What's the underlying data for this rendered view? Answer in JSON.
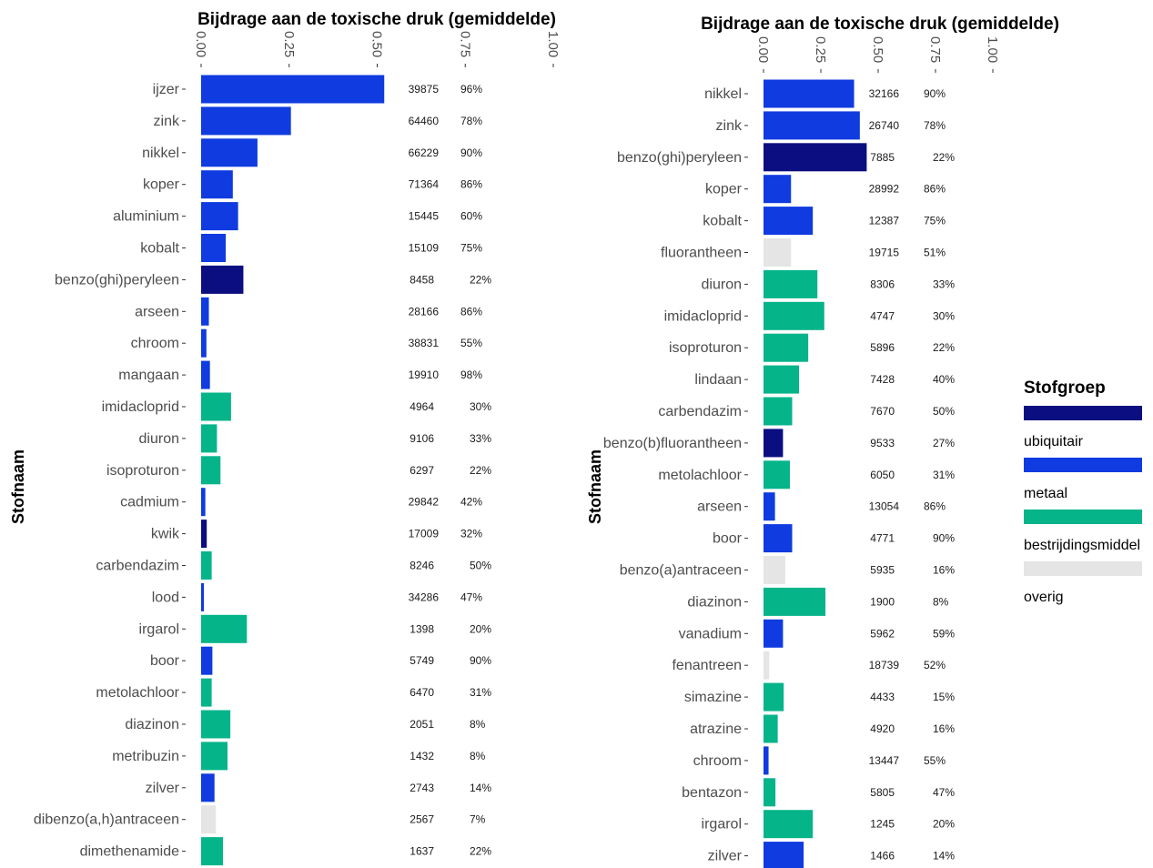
{
  "colors": {
    "ubiquitair": "#0b0e80",
    "metaal": "#0f3be0",
    "bestrijdingsmiddel": "#06b48a",
    "overig": "#e5e5e5"
  },
  "legend": {
    "title": "Stofgroep",
    "items": [
      {
        "label": "ubiquitair",
        "group": "ubiquitair"
      },
      {
        "label": "metaal",
        "group": "metaal"
      },
      {
        "label": "bestrijdingsmiddel",
        "group": "bestrijdingsmiddel"
      },
      {
        "label": "overig",
        "group": "overig"
      }
    ]
  },
  "chart_data": [
    {
      "type": "bar",
      "orientation": "horizontal",
      "title": "Bijdrage aan de toxische druk (gemiddelde)",
      "ylabel": "Stofnaam",
      "xlim": [
        0,
        1
      ],
      "xticks": [
        "0.00",
        "0.25",
        "0.50",
        "0.75",
        "1.00"
      ],
      "categories": [
        "ijzer",
        "zink",
        "nikkel",
        "koper",
        "aluminium",
        "kobalt",
        "benzo(ghi)peryleen",
        "arseen",
        "chroom",
        "mangaan",
        "imidacloprid",
        "diuron",
        "isoproturon",
        "cadmium",
        "kwik",
        "carbendazim",
        "lood",
        "irgarol",
        "boor",
        "metolachloor",
        "diazinon",
        "metribuzin",
        "zilver",
        "dibenzo(a,h)antraceen",
        "dimethenamide"
      ],
      "values": [
        0.52,
        0.255,
        0.16,
        0.09,
        0.105,
        0.07,
        0.12,
        0.022,
        0.015,
        0.025,
        0.085,
        0.045,
        0.055,
        0.012,
        0.016,
        0.03,
        0.008,
        0.13,
        0.032,
        0.03,
        0.083,
        0.075,
        0.038,
        0.042,
        0.062
      ],
      "groups": [
        "metaal",
        "metaal",
        "metaal",
        "metaal",
        "metaal",
        "metaal",
        "ubiquitair",
        "metaal",
        "metaal",
        "metaal",
        "bestrijdingsmiddel",
        "bestrijdingsmiddel",
        "bestrijdingsmiddel",
        "metaal",
        "ubiquitair",
        "bestrijdingsmiddel",
        "metaal",
        "bestrijdingsmiddel",
        "metaal",
        "bestrijdingsmiddel",
        "bestrijdingsmiddel",
        "bestrijdingsmiddel",
        "metaal",
        "overig",
        "bestrijdingsmiddel"
      ],
      "label_counts": [
        "39875",
        "64460",
        "66229",
        "71364",
        "15445",
        "15109",
        "8458",
        "28166",
        "38831",
        "19910",
        "4964",
        "9106",
        "6297",
        "29842",
        "17009",
        "8246",
        "34286",
        "1398",
        "5749",
        "6470",
        "2051",
        "1432",
        "2743",
        "2567",
        "1637"
      ],
      "label_percents": [
        "96%",
        "78%",
        "90%",
        "86%",
        "60%",
        "75%",
        "22%",
        "86%",
        "55%",
        "98%",
        "30%",
        "33%",
        "22%",
        "42%",
        "32%",
        "50%",
        "47%",
        "20%",
        "90%",
        "31%",
        "8%",
        "8%",
        "14%",
        "7%",
        "22%"
      ]
    },
    {
      "type": "bar",
      "orientation": "horizontal",
      "title": "Bijdrage aan de toxische druk (gemiddelde)",
      "ylabel": "Stofnaam",
      "xlim": [
        0,
        1
      ],
      "xticks": [
        "0.00",
        "0.25",
        "0.50",
        "0.75",
        "1.00"
      ],
      "categories": [
        "nikkel",
        "zink",
        "benzo(ghi)peryleen",
        "koper",
        "kobalt",
        "fluorantheen",
        "diuron",
        "imidacloprid",
        "isoproturon",
        "lindaan",
        "carbendazim",
        "benzo(b)fluorantheen",
        "metolachloor",
        "arseen",
        "boor",
        "benzo(a)antraceen",
        "diazinon",
        "vanadium",
        "fenantreen",
        "simazine",
        "atrazine",
        "chroom",
        "bentazon",
        "irgarol",
        "zilver"
      ],
      "values": [
        0.395,
        0.42,
        0.45,
        0.12,
        0.215,
        0.12,
        0.235,
        0.265,
        0.195,
        0.155,
        0.125,
        0.085,
        0.115,
        0.05,
        0.125,
        0.095,
        0.27,
        0.085,
        0.025,
        0.088,
        0.062,
        0.022,
        0.052,
        0.215,
        0.175
      ],
      "groups": [
        "metaal",
        "metaal",
        "ubiquitair",
        "metaal",
        "metaal",
        "overig",
        "bestrijdingsmiddel",
        "bestrijdingsmiddel",
        "bestrijdingsmiddel",
        "bestrijdingsmiddel",
        "bestrijdingsmiddel",
        "ubiquitair",
        "bestrijdingsmiddel",
        "metaal",
        "metaal",
        "overig",
        "bestrijdingsmiddel",
        "metaal",
        "overig",
        "bestrijdingsmiddel",
        "bestrijdingsmiddel",
        "metaal",
        "bestrijdingsmiddel",
        "bestrijdingsmiddel",
        "metaal"
      ],
      "label_counts": [
        "32166",
        "26740",
        "7885",
        "28992",
        "12387",
        "19715",
        "8306",
        "4747",
        "5896",
        "7428",
        "7670",
        "9533",
        "6050",
        "13054",
        "4771",
        "5935",
        "1900",
        "5962",
        "18739",
        "4433",
        "4920",
        "13447",
        "5805",
        "1245",
        "1466"
      ],
      "label_percents": [
        "90%",
        "78%",
        "22%",
        "86%",
        "75%",
        "51%",
        "33%",
        "30%",
        "22%",
        "40%",
        "50%",
        "27%",
        "31%",
        "86%",
        "90%",
        "16%",
        "8%",
        "59%",
        "52%",
        "15%",
        "16%",
        "55%",
        "47%",
        "20%",
        "14%"
      ]
    }
  ]
}
